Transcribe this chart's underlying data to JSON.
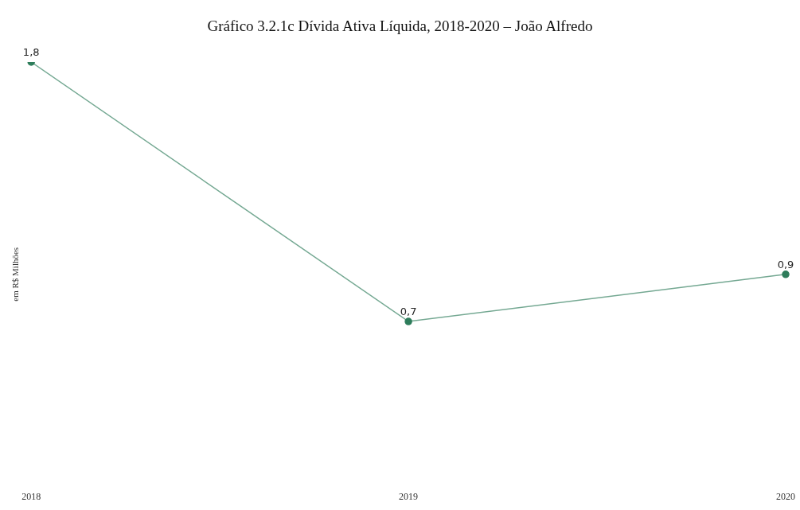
{
  "chart_data": {
    "type": "line",
    "title": "Gráfico 3.2.1c Dívida Ativa Líquida, 2018-2020 – João Alfredo",
    "ylabel": "em R$ Milhões",
    "categories": [
      "2018",
      "2019",
      "2020"
    ],
    "series": [
      {
        "color": "#2e7d5b",
        "values": [
          1.8,
          0.7,
          0.9
        ],
        "value_labels": [
          "1,8",
          "0,7",
          "0,9"
        ]
      }
    ],
    "marker": "circle",
    "line_style": "solid",
    "grid": false,
    "legend": false
  }
}
